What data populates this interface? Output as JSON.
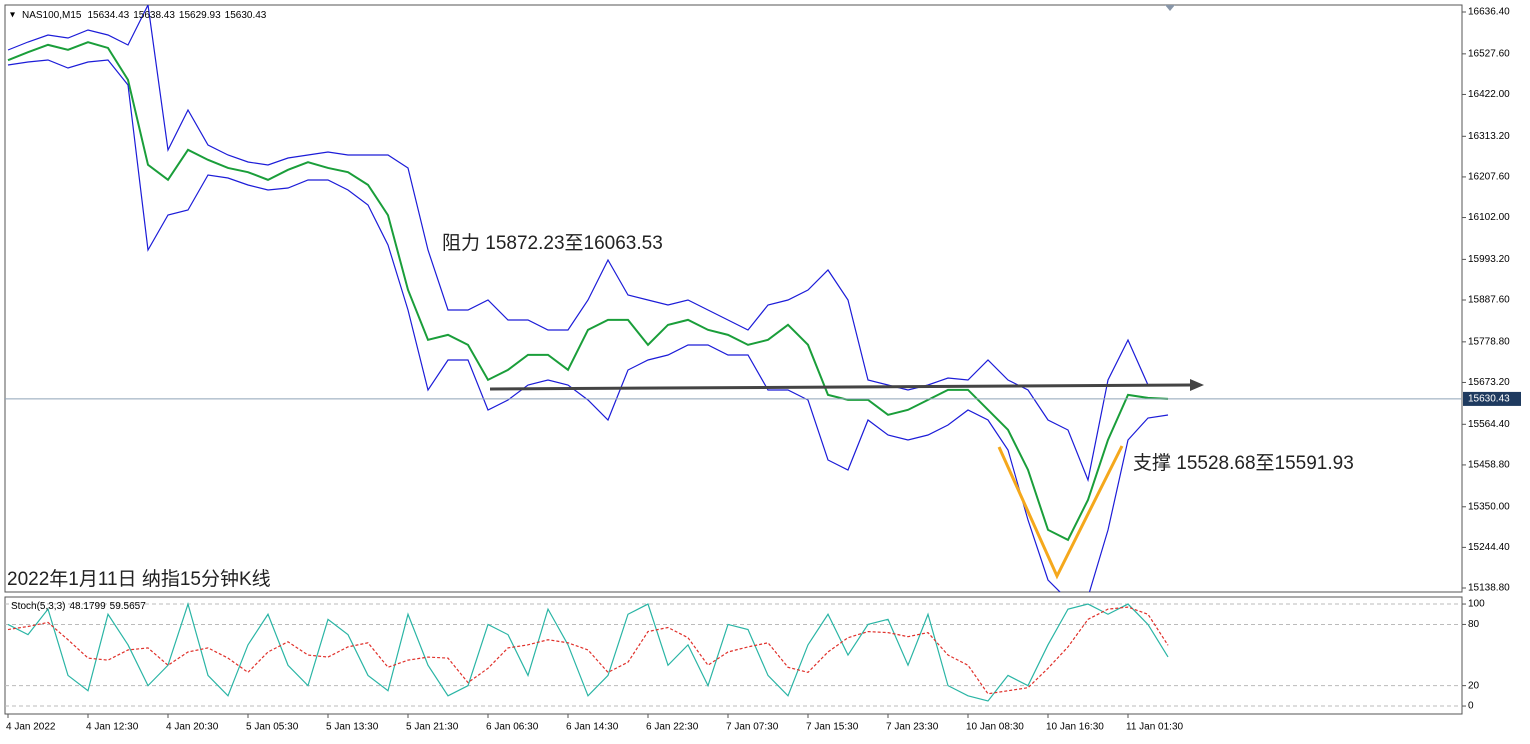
{
  "chart_data": [
    {
      "type": "line",
      "symbol": "NAS100,M15",
      "header_values": [
        15634.43,
        15638.43,
        15629.93,
        15630.43
      ],
      "annotations": [
        "阻力 15872.23至16063.53",
        "支撑 15528.68至15591.93",
        "2022年1月11日 纳指15分钟K线"
      ],
      "ylim": [
        15128.4,
        16654.6
      ],
      "yticks": [
        {
          "value": 16636.4,
          "label": "16636.40"
        },
        {
          "value": 16527.6,
          "label": "16527.60"
        },
        {
          "value": 16422,
          "label": "16422.00"
        },
        {
          "value": 16313.2,
          "label": "16313.20"
        },
        {
          "value": 16207.6,
          "label": "16207.60"
        },
        {
          "value": 16102,
          "label": "16102.00"
        },
        {
          "value": 15993.2,
          "label": "15993.20"
        },
        {
          "value": 15887.6,
          "label": "15887.60"
        },
        {
          "value": 15778.8,
          "label": "15778.80"
        },
        {
          "value": 15673.2,
          "label": "15673.20"
        },
        {
          "value": 15564.4,
          "label": "15564.40"
        },
        {
          "value": 15458.8,
          "label": "15458.80"
        },
        {
          "value": 15350,
          "label": "15350.00"
        },
        {
          "value": 15244.4,
          "label": "15244.40"
        },
        {
          "value": 15138.8,
          "label": "15138.80"
        }
      ],
      "series": [
        {
          "color": "#1a9e3a",
          "values": [
            16511,
            16532,
            16551,
            16538,
            16558,
            16543,
            16460,
            16239,
            16200,
            16278,
            16252,
            16231,
            16220,
            16200,
            16226,
            16246,
            16231,
            16220,
            16187,
            16108,
            15914,
            15784,
            15797,
            15771,
            15680,
            15706,
            15745,
            15745,
            15706,
            15810,
            15836,
            15836,
            15771,
            15823,
            15836,
            15810,
            15797,
            15771,
            15784,
            15823,
            15771,
            15641,
            15628,
            15628,
            15589,
            15602,
            15628,
            15654,
            15654,
            15602,
            15550,
            15446,
            15290,
            15264,
            15368,
            15524,
            15641,
            15633,
            15630.43
          ]
        },
        {
          "color": "#1c1cd8",
          "values": [
            16537.6,
            16558.4,
            16576.6,
            16568.8,
            16589.6,
            16576.6,
            16550.6,
            16654.6,
            16277.6,
            16381.6,
            16290.6,
            16264.6,
            16246.4,
            16238.6,
            16256.8,
            16264.6,
            16272.4,
            16264.6,
            16264.6,
            16264.6,
            16230.8,
            16017.6,
            15861.6,
            15861.6,
            15887.6,
            15835.6,
            15835.6,
            15809.6,
            15809.6,
            15887.6,
            15991.6,
            15900.6,
            15887.6,
            15874.6,
            15887.6,
            15861.6,
            15835.6,
            15809.6,
            15874.6,
            15887.6,
            15913.6,
            15965.6,
            15887.6,
            15679.6,
            15666.6,
            15653.6,
            15666.6,
            15684.8,
            15679.6,
            15731.6,
            15679.6,
            15653.6,
            15575.6,
            15549.6,
            15419.6,
            15679.6,
            15783.6,
            15666.6,
            15666.6
          ]
        },
        {
          "color": "#1c1cd8",
          "values": [
            16498.6,
            16506.4,
            16511.6,
            16490.8,
            16506.4,
            16511.6,
            16446.6,
            16017.6,
            16108.6,
            16121.6,
            16212.6,
            16204.8,
            16186.6,
            16173.6,
            16178.8,
            16199.6,
            16199.6,
            16173.6,
            16134.6,
            16030.6,
            15861.6,
            15653.6,
            15731.6,
            15731.6,
            15601.6,
            15627.6,
            15666.6,
            15679.6,
            15666.6,
            15627.6,
            15575.6,
            15705.6,
            15731.6,
            15744.6,
            15770.6,
            15770.6,
            15744.6,
            15744.6,
            15653.6,
            15653.6,
            15627.6,
            15471.6,
            15445.6,
            15575.6,
            15536.6,
            15523.6,
            15536.6,
            15562.6,
            15601.6,
            15575.6,
            15497.6,
            15315.6,
            15159.6,
            15107.6,
            15115.4,
            15289.6,
            15523.6,
            15580.8,
            15588.6
          ]
        }
      ]
    },
    {
      "type": "line",
      "title": "Stoch(5,3,3)",
      "categories": [
        "4 Jan 2022",
        null,
        null,
        null,
        "4 Jan 12:30",
        null,
        null,
        null,
        "4 Jan 20:30",
        null,
        null,
        null,
        "5 Jan 05:30",
        null,
        null,
        null,
        "5 Jan 13:30",
        null,
        null,
        null,
        "5 Jan 21:30",
        null,
        null,
        null,
        "6 Jan 06:30",
        null,
        null,
        null,
        "6 Jan 14:30",
        null,
        null,
        null,
        "6 Jan 22:30",
        null,
        null,
        null,
        "7 Jan 07:30",
        null,
        null,
        null,
        "7 Jan 15:30",
        null,
        null,
        null,
        "7 Jan 23:30",
        null,
        null,
        null,
        "10 Jan 08:30",
        null,
        null,
        null,
        "10 Jan 16:30",
        null,
        null,
        null,
        "11 Jan 01:30",
        null,
        null
      ],
      "ylim": [
        -7.8,
        106.9
      ],
      "yticks": [
        100,
        80,
        20,
        0
      ],
      "series": [
        {
          "color": "#2ab5a5",
          "dash": false,
          "values": [
            80,
            70,
            95,
            30,
            15,
            90,
            60,
            20,
            40,
            100,
            30,
            10,
            60,
            90,
            40,
            20,
            85,
            70,
            30,
            15,
            90,
            40,
            10,
            20,
            80,
            70,
            30,
            95,
            60,
            10,
            30,
            90,
            100,
            40,
            60,
            20,
            80,
            75,
            30,
            10,
            60,
            90,
            50,
            80,
            85,
            40,
            90,
            20,
            10,
            5,
            30,
            20,
            60,
            95,
            100,
            90,
            100,
            80,
            48.1799
          ]
        },
        {
          "color": "#e0302a",
          "dash": true,
          "values": [
            75,
            78,
            82,
            65,
            47,
            45,
            55,
            57,
            40,
            53,
            57,
            47,
            33,
            53,
            63,
            50,
            48,
            58,
            62,
            38,
            45,
            48,
            47,
            23,
            37,
            57,
            60,
            65,
            62,
            55,
            33,
            43,
            73,
            77,
            67,
            40,
            53,
            58,
            62,
            38,
            33,
            53,
            67,
            73,
            72,
            68,
            72,
            50,
            40,
            12,
            15,
            18,
            37,
            58,
            85,
            95,
            97,
            90,
            59.5657
          ]
        }
      ]
    }
  ]
}
